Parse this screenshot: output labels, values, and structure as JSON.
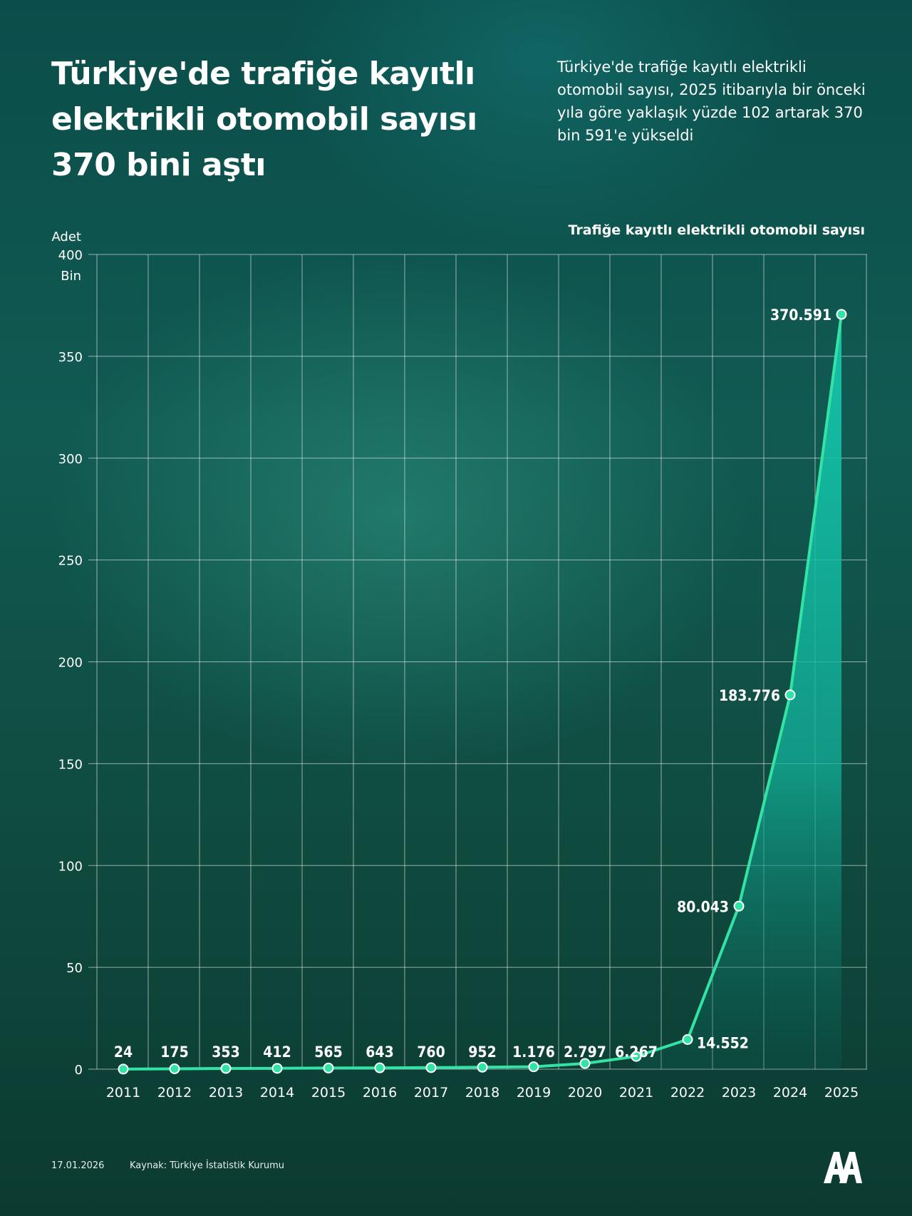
{
  "header": {
    "title": "Türkiye'de trafiğe kayıtlı elektrikli otomobil sayısı 370 bini aştı",
    "subtitle": "Türkiye'de trafiğe kayıtlı elektrikli otomobil sayısı, 2025 itibarıyla bir önceki yıla göre yaklaşık yüzde 102 artarak 370 bin 591'e yükseldi"
  },
  "colors": {
    "accent": "#33e3a6",
    "grid": "#ffffff",
    "background": "#0f5048"
  },
  "chart_data": {
    "type": "line",
    "title": "Trafiğe kayıtlı elektrikli otomobil sayısı",
    "y_unit_top": "Adet",
    "y_unit_bottom": "Bin",
    "x": [
      "2011",
      "2012",
      "2013",
      "2014",
      "2015",
      "2016",
      "2017",
      "2018",
      "2019",
      "2020",
      "2021",
      "2022",
      "2023",
      "2024",
      "2025"
    ],
    "values": [
      24,
      175,
      353,
      412,
      565,
      643,
      760,
      952,
      1176,
      2797,
      6267,
      14552,
      80043,
      183776,
      370591
    ],
    "data_labels": [
      "24",
      "175",
      "353",
      "412",
      "565",
      "643",
      "760",
      "952",
      "1.176",
      "2.797",
      "6.267",
      "14.552",
      "80.043",
      "183.776",
      "370.591"
    ],
    "yticks": [
      0,
      50,
      100,
      150,
      200,
      250,
      300,
      350,
      400
    ],
    "ytick_labels": [
      "0",
      "50",
      "100",
      "150",
      "200",
      "250",
      "300",
      "350",
      "400"
    ],
    "ylim": [
      0,
      400000
    ],
    "grid": true,
    "legend": "none"
  },
  "footer": {
    "date": "17.01.2026",
    "source": "Kaynak: Türkiye İstatistik Kurumu",
    "logo_text": "AA"
  }
}
